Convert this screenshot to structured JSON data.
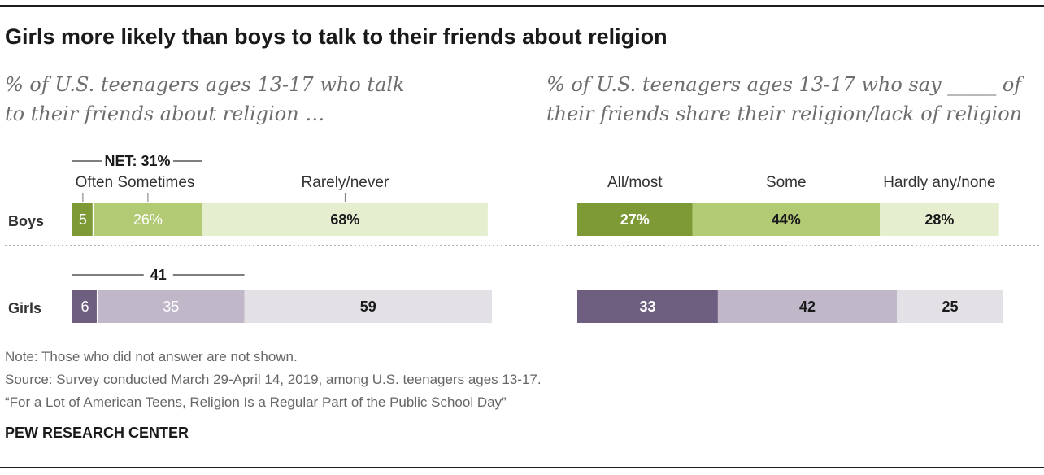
{
  "title": "Girls more likely than boys to talk to their friends about religion",
  "subtitles": {
    "left": [
      "% of U.S. teenagers ages 13-17 who talk",
      "to their friends about religion …"
    ],
    "right": [
      "% of U.S. teenagers ages 13-17 who say _____ of",
      "their friends share their religion/lack of religion"
    ]
  },
  "chart_data": [
    {
      "type": "bar",
      "orientation": "horizontal",
      "stacked": true,
      "categories": [
        "Boys",
        "Girls"
      ],
      "segment_labels": [
        "Often",
        "Sometimes",
        "Rarely/never"
      ],
      "series": [
        {
          "name": "Often",
          "values": [
            5,
            6
          ],
          "labels": [
            "5",
            "6"
          ]
        },
        {
          "name": "Sometimes",
          "values": [
            26,
            35
          ],
          "labels": [
            "26%",
            "35"
          ]
        },
        {
          "name": "Rarely/never",
          "values": [
            68,
            59
          ],
          "labels": [
            "68%",
            "59"
          ]
        }
      ],
      "net": {
        "values": [
          31,
          41
        ],
        "labels": [
          "NET: 31%",
          "41"
        ]
      }
    },
    {
      "type": "bar",
      "orientation": "horizontal",
      "stacked": true,
      "categories": [
        "Boys",
        "Girls"
      ],
      "segment_labels": [
        "All/most",
        "Some",
        "Hardly any/none"
      ],
      "series": [
        {
          "name": "All/most",
          "values": [
            27,
            33
          ],
          "labels": [
            "27%",
            "33"
          ]
        },
        {
          "name": "Some",
          "values": [
            44,
            42
          ],
          "labels": [
            "44%",
            "42"
          ]
        },
        {
          "name": "Hardly any/none",
          "values": [
            28,
            25
          ],
          "labels": [
            "28%",
            "25"
          ]
        }
      ]
    }
  ],
  "colors": {
    "boys": [
      "#7d9a37",
      "#b3ca75",
      "#e6eed0"
    ],
    "girls": [
      "#6e5e80",
      "#c0b7c9",
      "#e4e1e6"
    ],
    "boys_text": [
      "#ffffff",
      "#1a1a1a",
      "#1a1a1a"
    ],
    "girls_text": [
      "#ffffff",
      "#1a1a1a",
      "#1a1a1a"
    ]
  },
  "footer": {
    "note": "Note: Those who did not answer are not shown.",
    "source": "Source: Survey conducted March 29-April 14, 2019, among U.S. teenagers ages 13-17.",
    "report": "“For a Lot of American Teens, Religion Is a Regular Part of the Public School Day”",
    "brand": "PEW RESEARCH CENTER"
  }
}
